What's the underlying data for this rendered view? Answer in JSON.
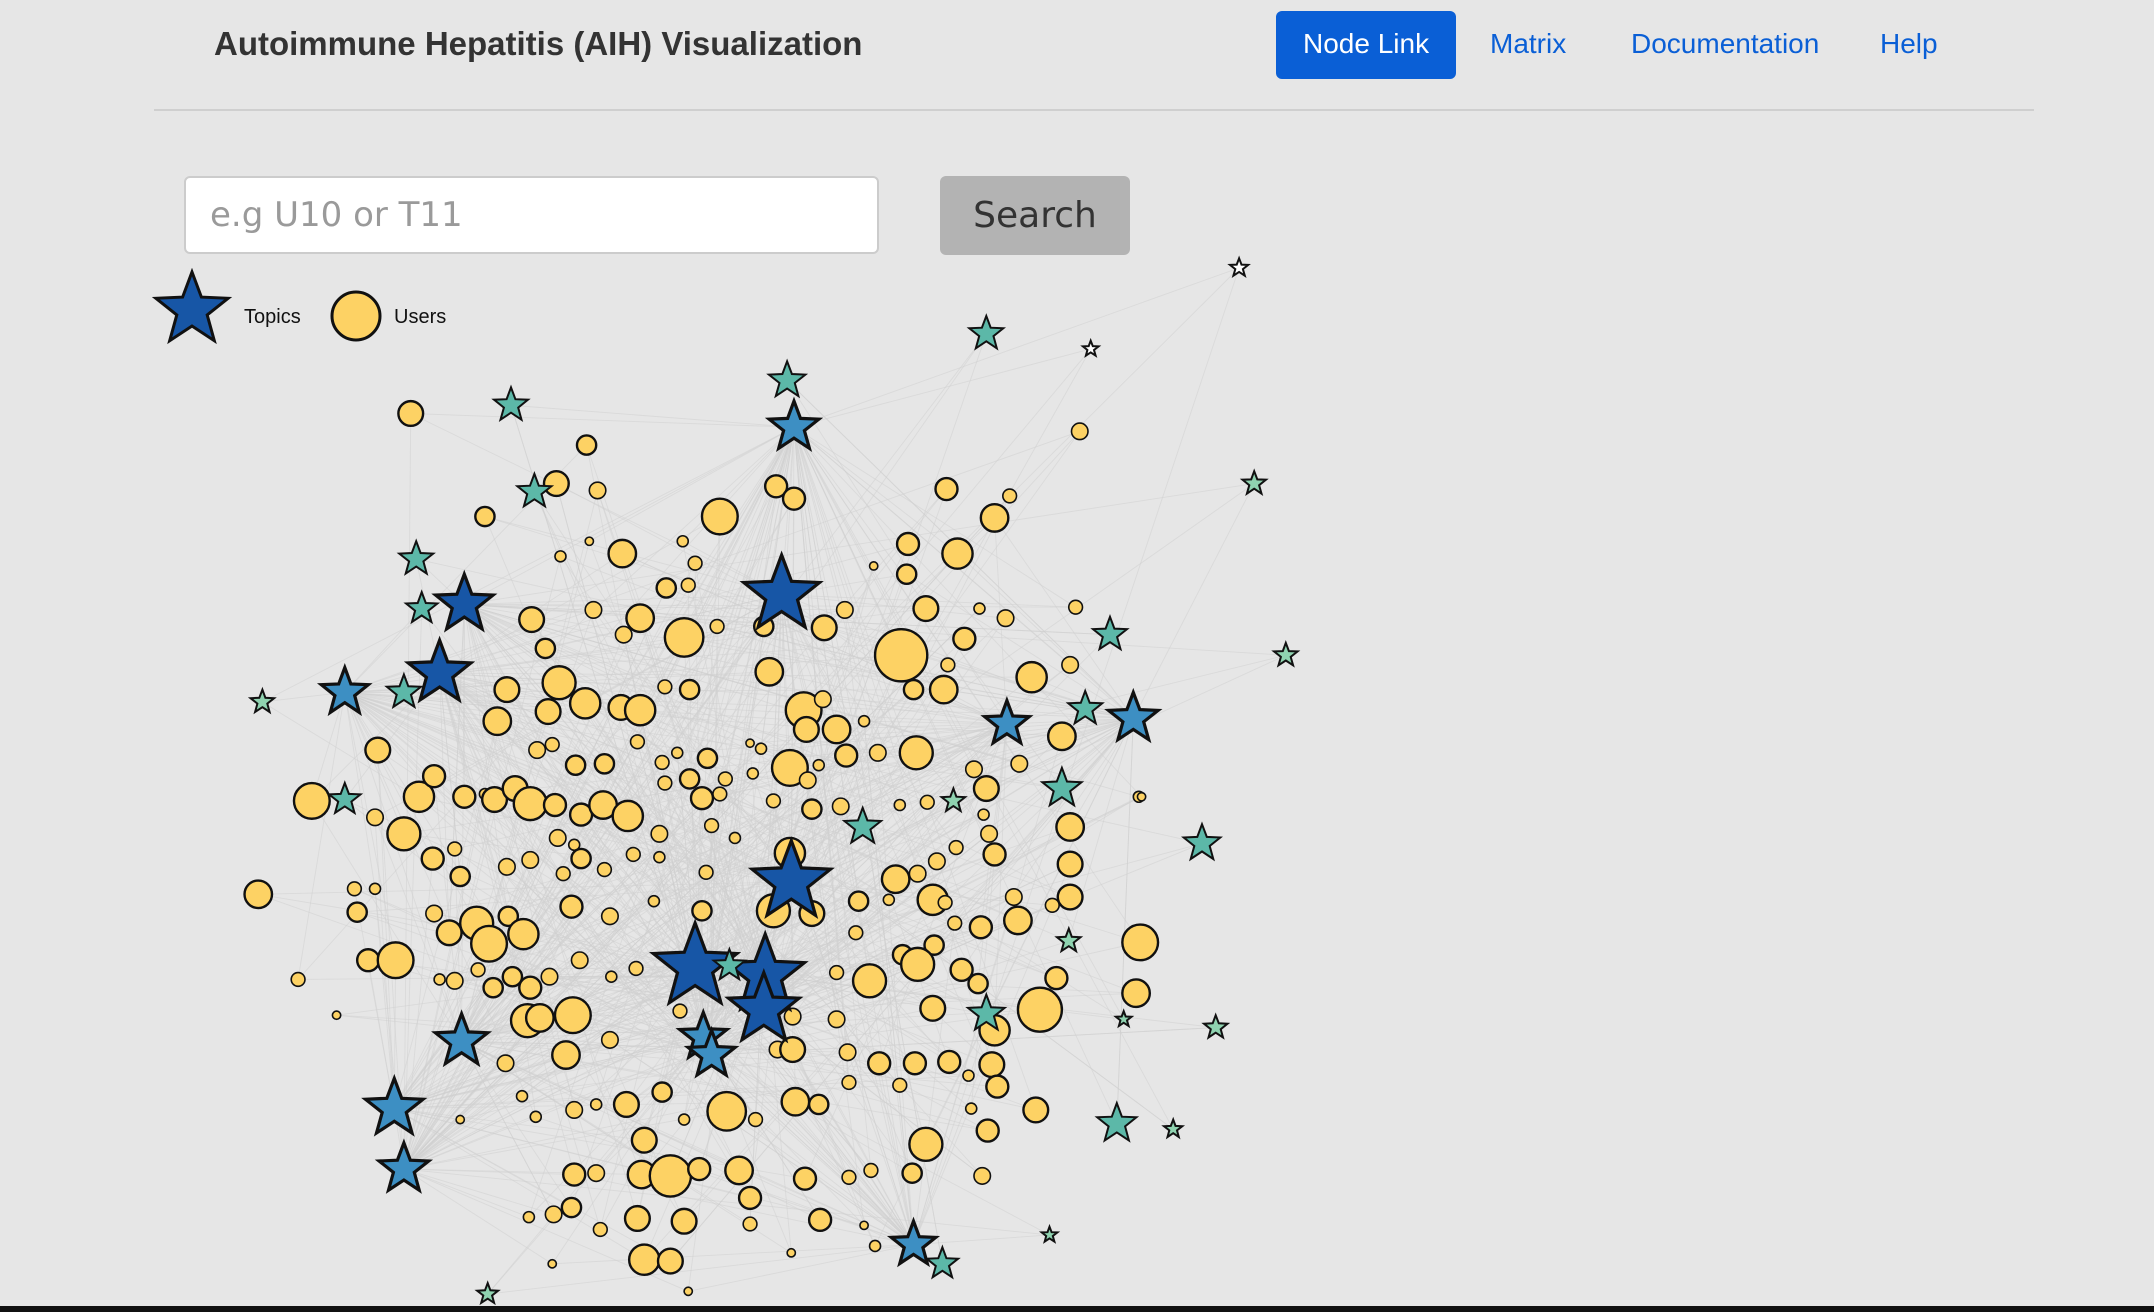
{
  "app": {
    "title": "Autoimmune Hepatitis (AIH) Visualization"
  },
  "nav": {
    "items": [
      {
        "label": "Node Link",
        "active": true
      },
      {
        "label": "Matrix",
        "active": false
      },
      {
        "label": "Documentation",
        "active": false
      },
      {
        "label": "Help",
        "active": false
      }
    ]
  },
  "search": {
    "placeholder": "e.g U10 or T11",
    "value": "",
    "button_label": "Search"
  },
  "legend": {
    "topics_label": "Topics",
    "users_label": "Users",
    "topics_icon": "star-icon",
    "users_icon": "circle-icon"
  },
  "colors": {
    "accent": "#0a5fd6",
    "background": "#e6e6e6",
    "user_node": "#fdd264",
    "topic_dark": "#1756a6",
    "topic_mid": "#3d8fc3",
    "topic_light": "#5cb8a8",
    "topic_pale": "#8fd3b0",
    "edge": "#d0d0d0"
  }
}
